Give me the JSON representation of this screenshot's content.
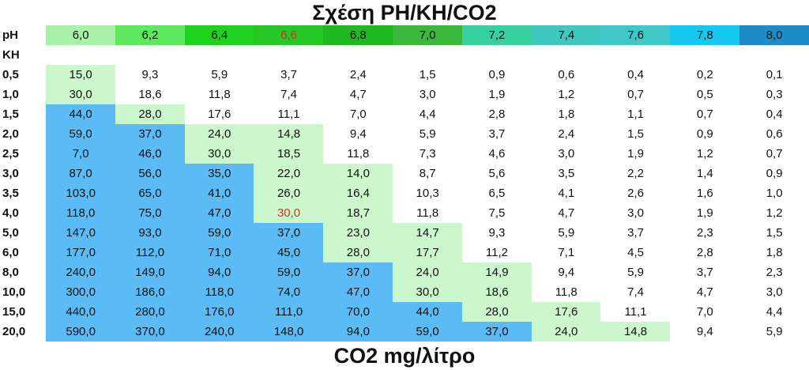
{
  "title": "Σχέση PH/KH/CO2",
  "footer": "CO2 mg/λίτρο",
  "ph_label": "pH",
  "kh_label": "KH",
  "chart_data": {
    "type": "table",
    "title": "Σχέση PH/KH/CO2",
    "xlabel": "pH",
    "ylabel": "KH",
    "value_label": "CO2 mg/λίτρο",
    "ph": [
      "6,0",
      "6,2",
      "6,4",
      "6,6",
      "6,8",
      "7,0",
      "7,2",
      "7,4",
      "7,6",
      "7,8",
      "8,0"
    ],
    "ph_colors": [
      "#a9f0a9",
      "#5de85d",
      "#1dd31d",
      "#26c826",
      "#20b820",
      "#3cb83c",
      "#39d0a0",
      "#3ec8c0",
      "#3ec8c8",
      "#14c8f0",
      "#1e8cc8"
    ],
    "ph_text_colors": [
      "#111111",
      "#111111",
      "#111111",
      "#c0392b",
      "#111111",
      "#111111",
      "#111111",
      "#111111",
      "#111111",
      "#111111",
      "#111111"
    ],
    "kh": [
      "0,5",
      "1,0",
      "1,5",
      "2,0",
      "2,5",
      "3,0",
      "3,5",
      "4,0",
      "5,0",
      "6,0",
      "8,0",
      "10,0",
      "15,0",
      "20,0"
    ],
    "values": [
      [
        "15,0",
        "9,3",
        "5,9",
        "3,7",
        "2,4",
        "1,5",
        "0,9",
        "0,6",
        "0,4",
        "0,2",
        "0,1"
      ],
      [
        "30,0",
        "18,6",
        "11,8",
        "7,4",
        "4,7",
        "3,0",
        "1,9",
        "1,2",
        "0,7",
        "0,5",
        "0,3"
      ],
      [
        "44,0",
        "28,0",
        "17,6",
        "11,1",
        "7,0",
        "4,4",
        "2,8",
        "1,8",
        "1,1",
        "0,7",
        "0,4"
      ],
      [
        "59,0",
        "37,0",
        "24,0",
        "14,8",
        "9,4",
        "5,9",
        "3,7",
        "2,4",
        "1,5",
        "0,9",
        "0,6"
      ],
      [
        "7,0",
        "46,0",
        "30,0",
        "18,5",
        "11,8",
        "7,3",
        "4,6",
        "3,0",
        "1,9",
        "1,2",
        "0,7"
      ],
      [
        "87,0",
        "56,0",
        "35,0",
        "22,0",
        "14,0",
        "8,7",
        "5,6",
        "3,5",
        "2,2",
        "1,4",
        "0,9"
      ],
      [
        "103,0",
        "65,0",
        "41,0",
        "26,0",
        "16,4",
        "10,3",
        "6,5",
        "4,1",
        "2,6",
        "1,6",
        "1,0"
      ],
      [
        "118,0",
        "75,0",
        "47,0",
        "30,0",
        "18,7",
        "11,8",
        "7,5",
        "4,7",
        "3,0",
        "1,9",
        "1,2"
      ],
      [
        "147,0",
        "93,0",
        "59,0",
        "37,0",
        "23,0",
        "14,7",
        "9,3",
        "5,9",
        "3,7",
        "2,3",
        "1,5"
      ],
      [
        "177,0",
        "112,0",
        "71,0",
        "45,0",
        "28,0",
        "17,7",
        "11,2",
        "7,1",
        "4,5",
        "2,8",
        "1,8"
      ],
      [
        "240,0",
        "149,0",
        "94,0",
        "59,0",
        "37,0",
        "24,0",
        "14,9",
        "9,4",
        "5,9",
        "3,7",
        "2,3"
      ],
      [
        "300,0",
        "186,0",
        "118,0",
        "74,0",
        "47,0",
        "30,0",
        "18,6",
        "11,8",
        "7,4",
        "4,7",
        "3,0"
      ],
      [
        "440,0",
        "280,0",
        "176,0",
        "111,0",
        "70,0",
        "44,0",
        "28,0",
        "17,6",
        "11,1",
        "7,0",
        "4,4"
      ],
      [
        "590,0",
        "370,0",
        "240,0",
        "148,0",
        "94,0",
        "59,0",
        "37,0",
        "24,0",
        "14,8",
        "9,4",
        "5,9"
      ]
    ],
    "zones": {
      "high": "#5bbcf5",
      "ideal": "#ccf7cc",
      "low": "#ffffff"
    },
    "ideal_band_start": [
      0,
      0,
      1,
      2,
      2,
      3,
      3,
      3,
      4,
      4,
      5,
      5,
      6,
      7
    ],
    "ideal_band_end": [
      0,
      0,
      1,
      3,
      3,
      4,
      4,
      4,
      5,
      5,
      6,
      6,
      7,
      8
    ],
    "highlight": {
      "kh_index": 7,
      "ph_index": 3,
      "color": "#c0392b"
    },
    "grid": false
  }
}
